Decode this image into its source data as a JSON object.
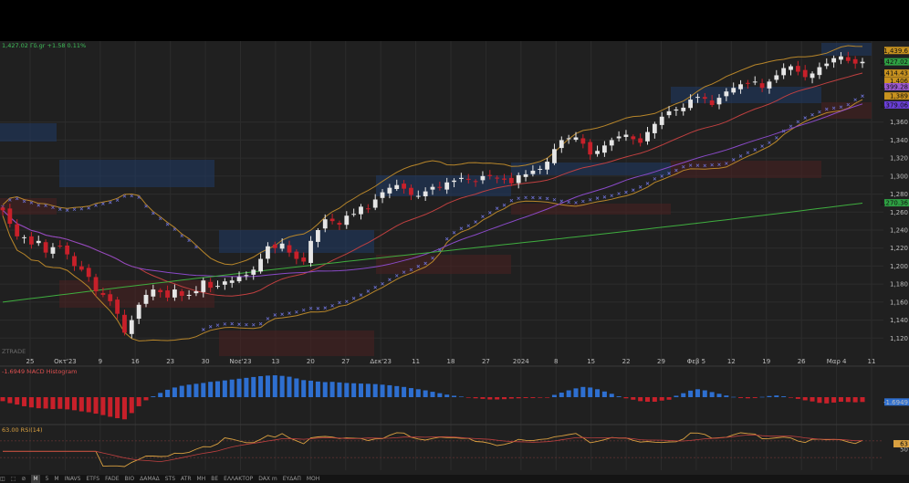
{
  "header": {
    "quote_text": "1,427.02 Γδ.gr +1.58 0.11%",
    "watermark": "ZTRADE"
  },
  "price_labels": [
    {
      "text": "1,439.6",
      "bg": "#c8921f"
    },
    {
      "text": "1,427.02",
      "bg": "#2ea043"
    },
    {
      "text": "1,414.43",
      "bg": "#c8921f"
    },
    {
      "text": "1,406",
      "bg": "#c8921f"
    },
    {
      "text": "1,399.28",
      "bg": "#9b59d0"
    },
    {
      "text": "1,389",
      "bg": "#c8921f"
    },
    {
      "text": "1,379.06",
      "bg": "#6a3fd8"
    },
    {
      "text": "1,270.36",
      "bg": "#2ea043"
    }
  ],
  "chart_data": [
    {
      "type": "candlestick",
      "title": "",
      "y_ticks": [
        "1,360",
        "1,340",
        "1,320",
        "1,300",
        "1,280",
        "1,260",
        "1,240",
        "1,220",
        "1,200",
        "1,180",
        "1,160",
        "1,140",
        "1,120"
      ],
      "x_ticks": [
        "25",
        "Οκτ'23",
        "9",
        "16",
        "23",
        "30",
        "Νοε'23",
        "13",
        "20",
        "27",
        "Δεκ'23",
        "11",
        "18",
        "27",
        "2024",
        "8",
        "15",
        "22",
        "29",
        "Φεβ 5",
        "12",
        "19",
        "26",
        "Μαρ 4",
        "11"
      ],
      "ylim": [
        1100,
        1450
      ],
      "close": [
        1262,
        1247,
        1233,
        1232,
        1224,
        1228,
        1215,
        1221,
        1222,
        1213,
        1200,
        1196,
        1188,
        1172,
        1168,
        1161,
        1147,
        1126,
        1140,
        1157,
        1168,
        1174,
        1171,
        1165,
        1174,
        1167,
        1168,
        1172,
        1184,
        1176,
        1178,
        1183,
        1184,
        1188,
        1190,
        1196,
        1208,
        1222,
        1220,
        1225,
        1215,
        1208,
        1205,
        1228,
        1240,
        1252,
        1250,
        1246,
        1256,
        1258,
        1266,
        1264,
        1274,
        1282,
        1287,
        1290,
        1286,
        1279,
        1278,
        1283,
        1288,
        1287,
        1293,
        1295,
        1298,
        1296,
        1294,
        1300,
        1300,
        1298,
        1296,
        1292,
        1301,
        1302,
        1306,
        1308,
        1316,
        1330,
        1340,
        1342,
        1343,
        1336,
        1324,
        1328,
        1334,
        1340,
        1344,
        1346,
        1341,
        1337,
        1349,
        1358,
        1366,
        1372,
        1374,
        1376,
        1385,
        1388,
        1386,
        1379,
        1387,
        1394,
        1398,
        1402,
        1403,
        1405,
        1398,
        1405,
        1412,
        1420,
        1422,
        1416,
        1410,
        1414,
        1421,
        1425,
        1431,
        1433,
        1428,
        1425,
        1427
      ],
      "indicators": [
        "SMA 20",
        "SMA 50",
        "SMA 200",
        "Bollinger Bands",
        "Parabolic SAR",
        "Volume Profile zones"
      ]
    },
    {
      "type": "bar",
      "title": "-1.6949 MACD Histogram",
      "last_value_label": "-1.6949",
      "values": [
        -1.4,
        -2.1,
        -2.6,
        -3.2,
        -3.6,
        -3.9,
        -4.0,
        -4.2,
        -4.1,
        -4.3,
        -4.6,
        -5.0,
        -5.3,
        -5.8,
        -6.3,
        -6.9,
        -7.4,
        -7.8,
        -5.6,
        -3.2,
        -1.1,
        0.3,
        1.5,
        2.6,
        3.4,
        4.0,
        4.4,
        4.7,
        5.0,
        5.4,
        5.6,
        5.9,
        6.2,
        6.5,
        6.8,
        7.1,
        7.4,
        7.6,
        7.7,
        7.5,
        7.2,
        6.6,
        6.0,
        5.8,
        5.5,
        5.3,
        5.4,
        5.2,
        5.0,
        4.9,
        4.8,
        4.7,
        4.6,
        4.4,
        4.2,
        3.9,
        3.6,
        3.2,
        2.8,
        2.4,
        1.9,
        1.4,
        0.9,
        0.5,
        0.2,
        -0.2,
        -0.4,
        -0.6,
        -0.8,
        -0.8,
        -0.7,
        -0.5,
        -0.4,
        -0.3,
        -0.3,
        -0.2,
        -0.1,
        0.8,
        1.6,
        2.4,
        3.1,
        3.6,
        3.4,
        2.8,
        2.0,
        1.2,
        0.3,
        -0.4,
        -0.9,
        -1.4,
        -1.6,
        -1.6,
        -1.2,
        -0.9,
        0.5,
        1.4,
        2.3,
        2.8,
        2.4,
        1.8,
        1.2,
        0.6,
        0.1,
        -0.3,
        -0.4,
        -0.3,
        0.1,
        0.4,
        0.6,
        0.3,
        -0.2,
        -0.6,
        -1.1,
        -1.5,
        -2.0,
        -2.2,
        -1.9,
        -1.6,
        -1.7,
        -1.8,
        -1.6949
      ],
      "ylim": [
        -9,
        9
      ]
    },
    {
      "type": "line",
      "title": "63.00 RSI(14)",
      "last_value_label": "63",
      "y_ticks": [
        "50"
      ],
      "ylim": [
        0,
        100
      ]
    }
  ],
  "toolbar": {
    "items": [
      "◫",
      "⬚",
      "⊘",
      "M",
      "5",
      "M",
      "INAVS",
      "ETFS",
      "FADE",
      "BIO",
      "ΔΑΜΑΔ",
      "STS",
      "ATR",
      "MH",
      "BE",
      "ΕΛΛΑΚΤΟΡ",
      "DAX m",
      "ΕΥΔΑΠ",
      "ΜΟΗ"
    ]
  }
}
